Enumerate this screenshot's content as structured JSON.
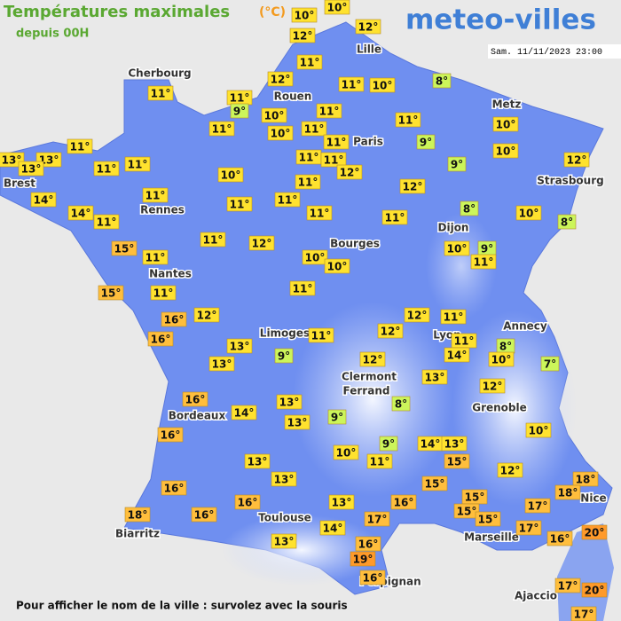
{
  "header": {
    "title": "Températures maximales",
    "unit": "(°C)",
    "subtitle": "depuis 00H",
    "logo": "meteo-villes",
    "timestamp": "Sam. 11/11/2023 23:00"
  },
  "cities": [
    "Cherbourg",
    "Lille",
    "Rouen",
    "Paris",
    "Metz",
    "Brest",
    "Rennes",
    "Strasbourg",
    "Dijon",
    "Bourges",
    "Nantes",
    "Annecy",
    "Limoges",
    "Lyon",
    "Clermont",
    "Ferrand",
    "Grenoble",
    "Bordeaux",
    "Nice",
    "Toulouse",
    "Marseille",
    "Biarritz",
    "Perpignan",
    "Ajaccio"
  ],
  "temperatures": [
    {
      "value": 10,
      "label": "10°"
    },
    {
      "value": 10,
      "label": "10°"
    },
    {
      "value": 12,
      "label": "12°"
    },
    {
      "value": 12,
      "label": "12°"
    },
    {
      "value": 11,
      "label": "11°"
    },
    {
      "value": 12,
      "label": "12°"
    },
    {
      "value": 11,
      "label": "11°"
    },
    {
      "value": 10,
      "label": "10°"
    },
    {
      "value": 8,
      "label": "8°"
    },
    {
      "value": 11,
      "label": "11°"
    },
    {
      "value": 11,
      "label": "11°"
    },
    {
      "value": 9,
      "label": "9°"
    },
    {
      "value": 10,
      "label": "10°"
    },
    {
      "value": 11,
      "label": "11°"
    },
    {
      "value": 10,
      "label": "10°"
    },
    {
      "value": 11,
      "label": "11°"
    },
    {
      "value": 11,
      "label": "11°"
    },
    {
      "value": 10,
      "label": "10°"
    },
    {
      "value": 11,
      "label": "11°"
    },
    {
      "value": 11,
      "label": "11°"
    },
    {
      "value": 11,
      "label": "11°"
    },
    {
      "value": 9,
      "label": "9°"
    },
    {
      "value": 10,
      "label": "10°"
    },
    {
      "value": 13,
      "label": "13°"
    },
    {
      "value": 13,
      "label": "13°"
    },
    {
      "value": 13,
      "label": "13°"
    },
    {
      "value": 11,
      "label": "11°"
    },
    {
      "value": 11,
      "label": "11°"
    },
    {
      "value": 11,
      "label": "11°"
    },
    {
      "value": 11,
      "label": "11°"
    },
    {
      "value": 12,
      "label": "12°"
    },
    {
      "value": 9,
      "label": "9°"
    },
    {
      "value": 12,
      "label": "12°"
    },
    {
      "value": 10,
      "label": "10°"
    },
    {
      "value": 11,
      "label": "11°"
    },
    {
      "value": 12,
      "label": "12°"
    },
    {
      "value": 14,
      "label": "14°"
    },
    {
      "value": 11,
      "label": "11°"
    },
    {
      "value": 11,
      "label": "11°"
    },
    {
      "value": 11,
      "label": "11°"
    },
    {
      "value": 8,
      "label": "8°"
    },
    {
      "value": 14,
      "label": "14°"
    },
    {
      "value": 11,
      "label": "11°"
    },
    {
      "value": 11,
      "label": "11°"
    },
    {
      "value": 10,
      "label": "10°"
    },
    {
      "value": 8,
      "label": "8°"
    },
    {
      "value": 11,
      "label": "11°"
    },
    {
      "value": 11,
      "label": "11°"
    },
    {
      "value": 12,
      "label": "12°"
    },
    {
      "value": 15,
      "label": "15°"
    },
    {
      "value": 11,
      "label": "11°"
    },
    {
      "value": 10,
      "label": "10°"
    },
    {
      "value": 10,
      "label": "10°"
    },
    {
      "value": 10,
      "label": "10°"
    },
    {
      "value": 9,
      "label": "9°"
    },
    {
      "value": 11,
      "label": "11°"
    },
    {
      "value": 15,
      "label": "15°"
    },
    {
      "value": 11,
      "label": "11°"
    },
    {
      "value": 11,
      "label": "11°"
    },
    {
      "value": 12,
      "label": "12°"
    },
    {
      "value": 16,
      "label": "16°"
    },
    {
      "value": 12,
      "label": "12°"
    },
    {
      "value": 11,
      "label": "11°"
    },
    {
      "value": 16,
      "label": "16°"
    },
    {
      "value": 11,
      "label": "11°"
    },
    {
      "value": 12,
      "label": "12°"
    },
    {
      "value": 11,
      "label": "11°"
    },
    {
      "value": 13,
      "label": "13°"
    },
    {
      "value": 8,
      "label": "8°"
    },
    {
      "value": 14,
      "label": "14°"
    },
    {
      "value": 10,
      "label": "10°"
    },
    {
      "value": 9,
      "label": "9°"
    },
    {
      "value": 7,
      "label": "7°"
    },
    {
      "value": 13,
      "label": "13°"
    },
    {
      "value": 12,
      "label": "12°"
    },
    {
      "value": 13,
      "label": "13°"
    },
    {
      "value": 12,
      "label": "12°"
    },
    {
      "value": 16,
      "label": "16°"
    },
    {
      "value": 13,
      "label": "13°"
    },
    {
      "value": 8,
      "label": "8°"
    },
    {
      "value": 14,
      "label": "14°"
    },
    {
      "value": 9,
      "label": "9°"
    },
    {
      "value": 13,
      "label": "13°"
    },
    {
      "value": 10,
      "label": "10°"
    },
    {
      "value": 16,
      "label": "16°"
    },
    {
      "value": 9,
      "label": "9°"
    },
    {
      "value": 14,
      "label": "14°"
    },
    {
      "value": 13,
      "label": "13°"
    },
    {
      "value": 10,
      "label": "10°"
    },
    {
      "value": 11,
      "label": "11°"
    },
    {
      "value": 13,
      "label": "13°"
    },
    {
      "value": 15,
      "label": "15°"
    },
    {
      "value": 12,
      "label": "12°"
    },
    {
      "value": 13,
      "label": "13°"
    },
    {
      "value": 15,
      "label": "15°"
    },
    {
      "value": 18,
      "label": "18°"
    },
    {
      "value": 16,
      "label": "16°"
    },
    {
      "value": 18,
      "label": "18°"
    },
    {
      "value": 16,
      "label": "16°"
    },
    {
      "value": 13,
      "label": "13°"
    },
    {
      "value": 16,
      "label": "16°"
    },
    {
      "value": 15,
      "label": "15°"
    },
    {
      "value": 15,
      "label": "15°"
    },
    {
      "value": 17,
      "label": "17°"
    },
    {
      "value": 18,
      "label": "18°"
    },
    {
      "value": 16,
      "label": "16°"
    },
    {
      "value": 15,
      "label": "15°"
    },
    {
      "value": 17,
      "label": "17°"
    },
    {
      "value": 14,
      "label": "14°"
    },
    {
      "value": 17,
      "label": "17°"
    },
    {
      "value": 20,
      "label": "20°"
    },
    {
      "value": 16,
      "label": "16°"
    },
    {
      "value": 13,
      "label": "13°"
    },
    {
      "value": 16,
      "label": "16°"
    },
    {
      "value": 19,
      "label": "19°"
    },
    {
      "value": 16,
      "label": "16°"
    },
    {
      "value": 17,
      "label": "17°"
    },
    {
      "value": 20,
      "label": "20°"
    },
    {
      "value": 17,
      "label": "17°"
    }
  ],
  "footer": "Pour afficher le nom de la ville : survolez avec la souris"
}
